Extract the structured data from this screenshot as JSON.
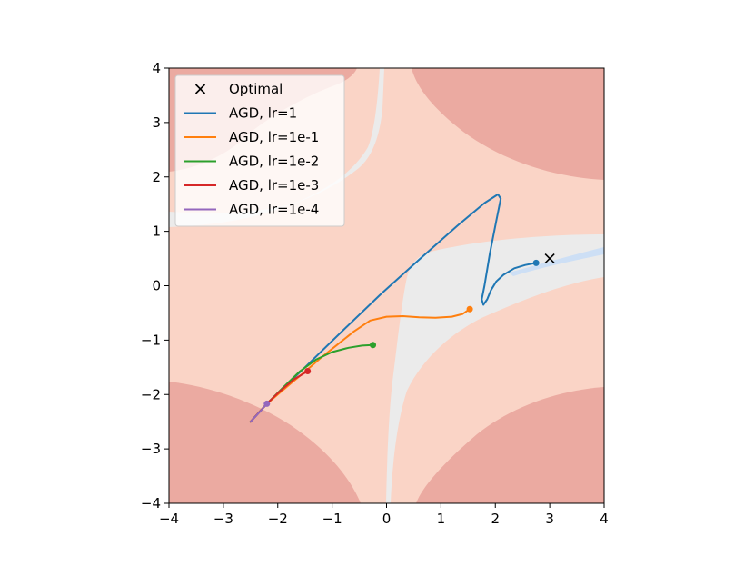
{
  "chart_data": {
    "type": "line",
    "title": "",
    "xlabel": "",
    "ylabel": "",
    "xlim": [
      -4,
      4
    ],
    "ylim": [
      -4,
      4
    ],
    "x_ticks": [
      -4,
      -3,
      -2,
      -1,
      0,
      1,
      2,
      3,
      4
    ],
    "y_ticks": [
      -4,
      -3,
      -2,
      -1,
      0,
      1,
      2,
      3,
      4
    ],
    "x_tick_labels": [
      "−4",
      "−3",
      "−2",
      "−1",
      "0",
      "1",
      "2",
      "3",
      "4"
    ],
    "y_tick_labels": [
      "−4",
      "−3",
      "−2",
      "−1",
      "0",
      "1",
      "2",
      "3",
      "4"
    ],
    "grid": false,
    "legend_position": "top-left",
    "background_regions": [
      {
        "name": "dark",
        "color": "#ebaaa1"
      },
      {
        "name": "light",
        "color": "#fad4c6"
      },
      {
        "name": "gray",
        "color": "#ebebeb"
      },
      {
        "name": "blue",
        "color": "#cddff5"
      }
    ],
    "optimal": {
      "label": "Optimal",
      "x": 3.0,
      "y": 0.5,
      "marker": "x",
      "color": "#000000"
    },
    "series": [
      {
        "name": "AGD, lr=1",
        "color": "#1f77b4",
        "x": [
          -2.5,
          -2.2,
          -1.5,
          -0.8,
          -0.1,
          0.6,
          1.3,
          1.8,
          2.05,
          2.1,
          2.02,
          1.9,
          1.8,
          1.75,
          1.78,
          1.85,
          1.92,
          2.02,
          2.15,
          2.35,
          2.55,
          2.75
        ],
        "y": [
          -2.5,
          -2.17,
          -1.5,
          -0.82,
          -0.15,
          0.48,
          1.1,
          1.52,
          1.68,
          1.6,
          1.2,
          0.6,
          0.0,
          -0.25,
          -0.35,
          -0.25,
          -0.08,
          0.08,
          0.2,
          0.32,
          0.38,
          0.42
        ]
      },
      {
        "name": "AGD, lr=1e-1",
        "color": "#ff7f0e",
        "x": [
          -2.5,
          -2.2,
          -1.8,
          -1.5,
          -1.2,
          -0.9,
          -0.6,
          -0.3,
          0.0,
          0.3,
          0.6,
          0.9,
          1.2,
          1.4,
          1.53
        ],
        "y": [
          -2.5,
          -2.17,
          -1.83,
          -1.58,
          -1.32,
          -1.08,
          -0.84,
          -0.64,
          -0.57,
          -0.56,
          -0.58,
          -0.59,
          -0.57,
          -0.52,
          -0.43
        ]
      },
      {
        "name": "AGD, lr=1e-2",
        "color": "#2ca02c",
        "x": [
          -2.5,
          -2.2,
          -1.9,
          -1.6,
          -1.3,
          -1.0,
          -0.7,
          -0.45,
          -0.25
        ],
        "y": [
          -2.5,
          -2.17,
          -1.87,
          -1.58,
          -1.36,
          -1.22,
          -1.14,
          -1.1,
          -1.09
        ]
      },
      {
        "name": "AGD, lr=1e-3",
        "color": "#d62728",
        "x": [
          -2.5,
          -2.2,
          -1.95,
          -1.7,
          -1.45
        ],
        "y": [
          -2.5,
          -2.17,
          -1.93,
          -1.72,
          -1.57
        ]
      },
      {
        "name": "AGD, lr=1e-4",
        "color": "#9467bd",
        "x": [
          -2.5,
          -2.35,
          -2.2
        ],
        "y": [
          -2.5,
          -2.34,
          -2.17
        ]
      }
    ]
  }
}
